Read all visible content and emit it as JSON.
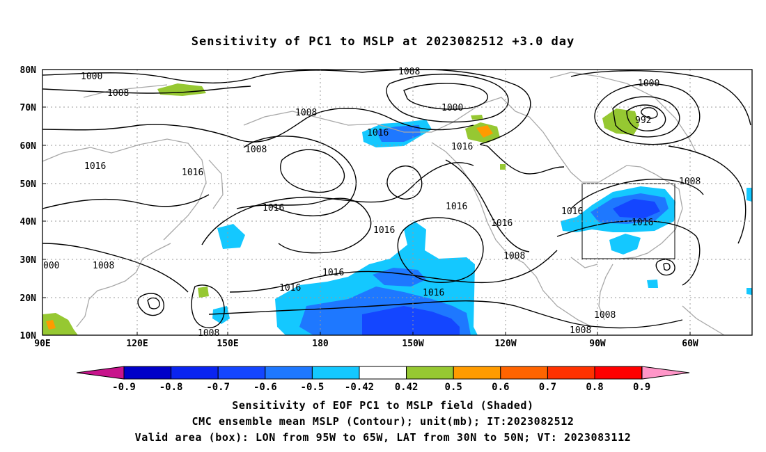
{
  "title": "Sensitivity of PC1 to MSLP at 2023082512 +3.0 day",
  "map": {
    "lat_labels": [
      "80N",
      "70N",
      "60N",
      "50N",
      "40N",
      "30N",
      "20N",
      "10N"
    ],
    "lon_labels": [
      "90E",
      "120E",
      "150E",
      "180",
      "150W",
      "120W",
      "90W",
      "60W"
    ],
    "contour_labels": [
      {
        "text": "1000",
        "key": "c1"
      },
      {
        "text": "1008",
        "key": "c2"
      },
      {
        "text": "1008",
        "key": "c3"
      },
      {
        "text": "1000",
        "key": "c4"
      },
      {
        "text": "1000",
        "key": "c5"
      },
      {
        "text": "992",
        "key": "c6"
      },
      {
        "text": "1008",
        "key": "c7"
      },
      {
        "text": "1016",
        "key": "c8"
      },
      {
        "text": "1008",
        "key": "c9"
      },
      {
        "text": "1016",
        "key": "c10"
      },
      {
        "text": "1016",
        "key": "c11"
      },
      {
        "text": "1016",
        "key": "c12"
      },
      {
        "text": "1016",
        "key": "c13"
      },
      {
        "text": "1016",
        "key": "c14"
      },
      {
        "text": "1016",
        "key": "c15"
      },
      {
        "text": "1016",
        "key": "c16"
      },
      {
        "text": "1016",
        "key": "c17"
      },
      {
        "text": "1016",
        "key": "c18"
      },
      {
        "text": "1016",
        "key": "c19"
      },
      {
        "text": "1008",
        "key": "c20"
      },
      {
        "text": "1008",
        "key": "c21"
      },
      {
        "text": "1008",
        "key": "c22"
      },
      {
        "text": "1008",
        "key": "c23"
      },
      {
        "text": "000",
        "key": "c24"
      },
      {
        "text": "1008",
        "key": "c25"
      },
      {
        "text": "1008",
        "key": "c26"
      },
      {
        "text": "1016",
        "key": "c27"
      }
    ],
    "valid_box": {
      "lon_from": "95W",
      "lon_to": "65W",
      "lat_from": "30N",
      "lat_to": "50N"
    }
  },
  "colorbar": {
    "labels": [
      "-0.9",
      "-0.8",
      "-0.7",
      "-0.6",
      "-0.5",
      "-0.42",
      "0.42",
      "0.5",
      "0.6",
      "0.7",
      "0.8",
      "0.9"
    ],
    "colors": [
      "#0000c8",
      "#0a24f0",
      "#1446ff",
      "#1e78ff",
      "#14c8ff",
      "#ffffff",
      "#96c832",
      "#ff9b00",
      "#ff6400",
      "#ff3200",
      "#ff0000"
    ],
    "under_color": "#c8148c",
    "over_color": "#ff96c8"
  },
  "footer": {
    "line1": "Sensitivity of EOF PC1 to MSLP field (Shaded)",
    "line2": "CMC ensemble mean MSLP (Contour); unit(mb); IT:2023082512",
    "line3": "Valid area (box): LON from 95W to 65W, LAT from 30N to 50N; VT: 2023083112"
  }
}
